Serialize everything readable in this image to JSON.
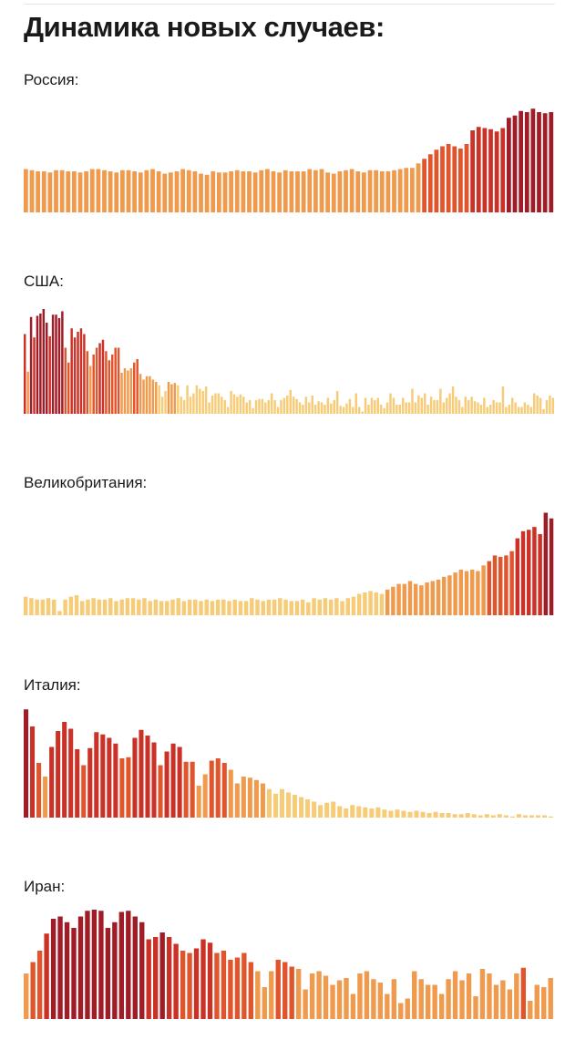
{
  "page": {
    "title": "Динамика новых случаев:"
  },
  "chart_data": [
    {
      "type": "bar",
      "country": "Россия:",
      "values": [
        38,
        37,
        36,
        36,
        35,
        37,
        37,
        36,
        36,
        35,
        36,
        38,
        38,
        37,
        36,
        35,
        37,
        37,
        36,
        35,
        37,
        38,
        36,
        34,
        35,
        36,
        38,
        37,
        36,
        34,
        33,
        36,
        35,
        35,
        36,
        37,
        36,
        36,
        35,
        37,
        38,
        36,
        35,
        37,
        36,
        36,
        36,
        38,
        37,
        38,
        35,
        34,
        36,
        37,
        38,
        36,
        35,
        37,
        37,
        36,
        36,
        37,
        38,
        39,
        39,
        43,
        47,
        51,
        55,
        58,
        60,
        58,
        56,
        60,
        72,
        75,
        74,
        73,
        71,
        74,
        83,
        85,
        89,
        88,
        91,
        88,
        87,
        88
      ],
      "ylim": [
        0,
        100
      ],
      "colors": [
        "#EF9A4C",
        "#E1552D",
        "#CA3228",
        "#A01C26"
      ],
      "thresholds": [
        45,
        68,
        82
      ]
    },
    {
      "type": "bar",
      "country": "США:",
      "values": [
        70,
        37,
        85,
        67,
        86,
        88,
        92,
        80,
        68,
        87,
        87,
        84,
        90,
        58,
        45,
        75,
        67,
        72,
        75,
        70,
        55,
        42,
        52,
        58,
        62,
        65,
        55,
        47,
        52,
        58,
        58,
        36,
        40,
        38,
        40,
        45,
        48,
        35,
        30,
        33,
        33,
        30,
        28,
        25,
        15,
        20,
        28,
        26,
        27,
        25,
        15,
        12,
        25,
        15,
        18,
        25,
        22,
        20,
        24,
        10,
        16,
        18,
        18,
        15,
        12,
        6,
        20,
        17,
        15,
        17,
        15,
        10,
        12,
        5,
        12,
        13,
        13,
        10,
        12,
        18,
        12,
        6,
        12,
        14,
        16,
        21,
        15,
        13,
        10,
        8,
        15,
        10,
        16,
        8,
        11,
        10,
        8,
        14,
        9,
        12,
        20,
        7,
        6,
        9,
        13,
        6,
        18,
        6,
        2,
        14,
        8,
        14,
        12,
        14,
        8,
        5,
        10,
        18,
        14,
        8,
        8,
        14,
        10,
        10,
        22,
        10,
        16,
        14,
        18,
        8,
        15,
        12,
        12,
        22,
        10,
        14,
        18,
        24,
        15,
        12,
        6,
        15,
        12,
        15,
        11,
        10,
        8,
        14,
        6,
        8,
        12,
        10,
        10,
        24,
        6,
        8,
        14,
        10,
        6,
        6,
        10,
        8,
        6,
        18,
        16,
        14,
        4,
        12,
        16,
        14
      ],
      "ylim": [
        0,
        100
      ],
      "colors": [
        "#F6CC78",
        "#EF9A4C",
        "#E1552D",
        "#CA3228",
        "#A01C26"
      ],
      "thresholds": [
        26,
        44,
        60,
        78
      ]
    },
    {
      "type": "bar",
      "country": "Великобритания:",
      "values": [
        13,
        12,
        11,
        11,
        12,
        11,
        3,
        11,
        13,
        14,
        10,
        11,
        12,
        11,
        11,
        12,
        10,
        11,
        12,
        12,
        11,
        12,
        10,
        11,
        10,
        10,
        11,
        12,
        10,
        11,
        11,
        10,
        11,
        10,
        11,
        11,
        10,
        11,
        10,
        10,
        12,
        11,
        10,
        11,
        11,
        12,
        11,
        10,
        10,
        11,
        9,
        12,
        11,
        12,
        11,
        12,
        10,
        12,
        13,
        15,
        16,
        17,
        16,
        15,
        18,
        20,
        22,
        22,
        24,
        22,
        21,
        23,
        24,
        25,
        27,
        28,
        30,
        32,
        31,
        32,
        31,
        35,
        38,
        42,
        41,
        42,
        45,
        54,
        59,
        60,
        62,
        57,
        72,
        68
      ],
      "ylim": [
        0,
        80
      ],
      "colors": [
        "#F6CC78",
        "#EF9A4C",
        "#E1552D",
        "#CA3228",
        "#A01C26"
      ],
      "thresholds": [
        18,
        36,
        50,
        65
      ]
    },
    {
      "type": "bar",
      "country": "Италия:",
      "values": [
        95,
        80,
        48,
        36,
        62,
        76,
        84,
        78,
        60,
        46,
        61,
        75,
        73,
        70,
        65,
        52,
        53,
        70,
        77,
        72,
        66,
        46,
        58,
        65,
        62,
        49,
        49,
        28,
        38,
        50,
        52,
        48,
        42,
        30,
        36,
        35,
        33,
        30,
        25,
        21,
        25,
        22,
        20,
        18,
        16,
        14,
        11,
        13,
        14,
        10,
        8,
        11,
        10,
        9,
        8,
        9,
        7,
        6,
        7,
        6,
        5,
        6,
        5,
        4,
        5,
        4,
        4,
        3,
        3,
        4,
        3,
        2,
        3,
        2,
        3,
        2,
        1,
        3,
        2,
        2,
        2,
        2,
        1
      ],
      "ylim": [
        0,
        100
      ],
      "colors": [
        "#F6CC78",
        "#EF9A4C",
        "#E1552D",
        "#CA3228",
        "#A01C26"
      ],
      "thresholds": [
        26,
        45,
        58,
        85
      ]
    },
    {
      "type": "bar",
      "country": "Иран:",
      "values": [
        40,
        50,
        60,
        75,
        88,
        90,
        85,
        80,
        90,
        95,
        96,
        95,
        80,
        85,
        94,
        95,
        90,
        85,
        70,
        72,
        76,
        72,
        66,
        60,
        58,
        62,
        70,
        67,
        58,
        60,
        52,
        54,
        58,
        50,
        42,
        28,
        42,
        52,
        50,
        46,
        44,
        26,
        40,
        42,
        38,
        30,
        34,
        36,
        22,
        40,
        42,
        35,
        32,
        22,
        35,
        14,
        18,
        42,
        35,
        30,
        30,
        22,
        35,
        42,
        34,
        40,
        20,
        44,
        40,
        30,
        34,
        26,
        40,
        45,
        16,
        30,
        28,
        36
      ],
      "ylim": [
        0,
        100
      ],
      "colors": [
        "#EF9A4C",
        "#E1552D",
        "#CA3228",
        "#A01C26"
      ],
      "thresholds": [
        45,
        61,
        76
      ]
    }
  ]
}
